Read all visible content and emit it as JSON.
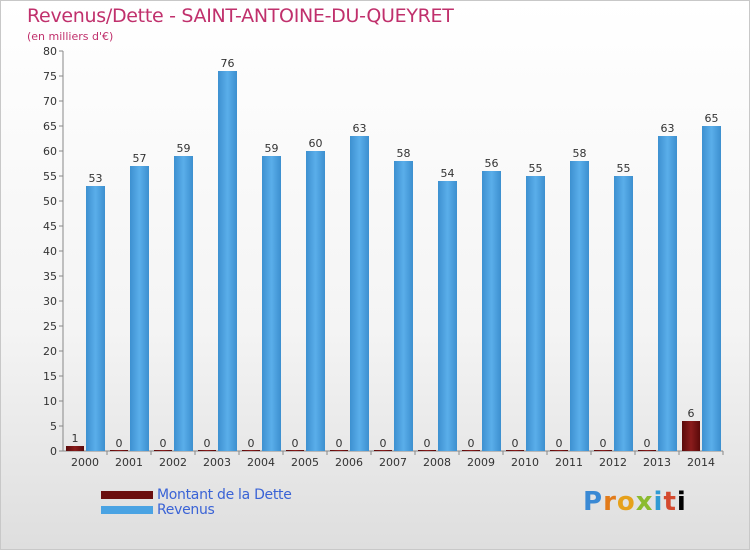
{
  "title": "Revenus/Dette - SAINT-ANTOINE-DU-QUEYRET",
  "subtitle": "(en milliers d'€)",
  "logo": {
    "letters": [
      "P",
      "r",
      "o",
      "x",
      "i",
      "t",
      "i"
    ]
  },
  "colors": {
    "title": "#c0306c",
    "legend_text": "#3a63d6"
  },
  "chart_data": {
    "type": "bar",
    "title": "Revenus/Dette - SAINT-ANTOINE-DU-QUEYRET",
    "ylabel": "(en milliers d'€)",
    "ylim": [
      0,
      80
    ],
    "yticks": [
      0,
      5,
      10,
      15,
      20,
      25,
      30,
      35,
      40,
      45,
      50,
      55,
      60,
      65,
      70,
      75,
      80
    ],
    "grid": false,
    "legend_position": "bottom-left",
    "categories": [
      "2000",
      "2001",
      "2002",
      "2003",
      "2004",
      "2005",
      "2006",
      "2007",
      "2008",
      "2009",
      "2010",
      "2011",
      "2012",
      "2013",
      "2014"
    ],
    "series": [
      {
        "name": "Montant de la Dette",
        "color": "#6b0f0f",
        "values": [
          1,
          0,
          0,
          0,
          0,
          0,
          0,
          0,
          0,
          0,
          0,
          0,
          0,
          0,
          6
        ]
      },
      {
        "name": "Revenus",
        "color": "#4aa3e3",
        "values": [
          53,
          57,
          59,
          76,
          59,
          60,
          63,
          58,
          54,
          56,
          55,
          58,
          55,
          63,
          65
        ]
      }
    ]
  }
}
